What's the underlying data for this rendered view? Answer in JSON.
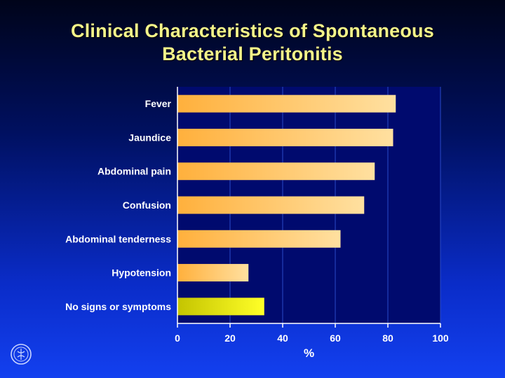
{
  "slide": {
    "title_line1": "Clinical Characteristics of Spontaneous",
    "title_line2": "Bacterial Peritonitis"
  },
  "logo": {
    "icon": "institution-seal-icon"
  },
  "colors": {
    "bar_gradient_start": "#ffb03c",
    "bar_gradient_end": "#ffe0a0",
    "highlight_gradient_start": "#c4c400",
    "highlight_gradient_end": "#ffff28",
    "plot_background": "#000a6e",
    "gridline": "#2a4ac8",
    "axis": "#ffffff"
  },
  "chart_data": {
    "type": "bar",
    "orientation": "horizontal",
    "categories": [
      "Fever",
      "Jaundice",
      "Abdominal pain",
      "Confusion",
      "Abdominal tenderness",
      "Hypotension",
      "No signs or symptoms"
    ],
    "values": [
      83,
      82,
      75,
      71,
      62,
      27,
      33
    ],
    "highlight": [
      "No signs or symptoms"
    ],
    "xlabel": "%",
    "ylabel": "",
    "xlim": [
      0,
      100
    ],
    "xticks": [
      "0",
      "20",
      "40",
      "60",
      "80",
      "100"
    ],
    "grid": "vertical"
  }
}
